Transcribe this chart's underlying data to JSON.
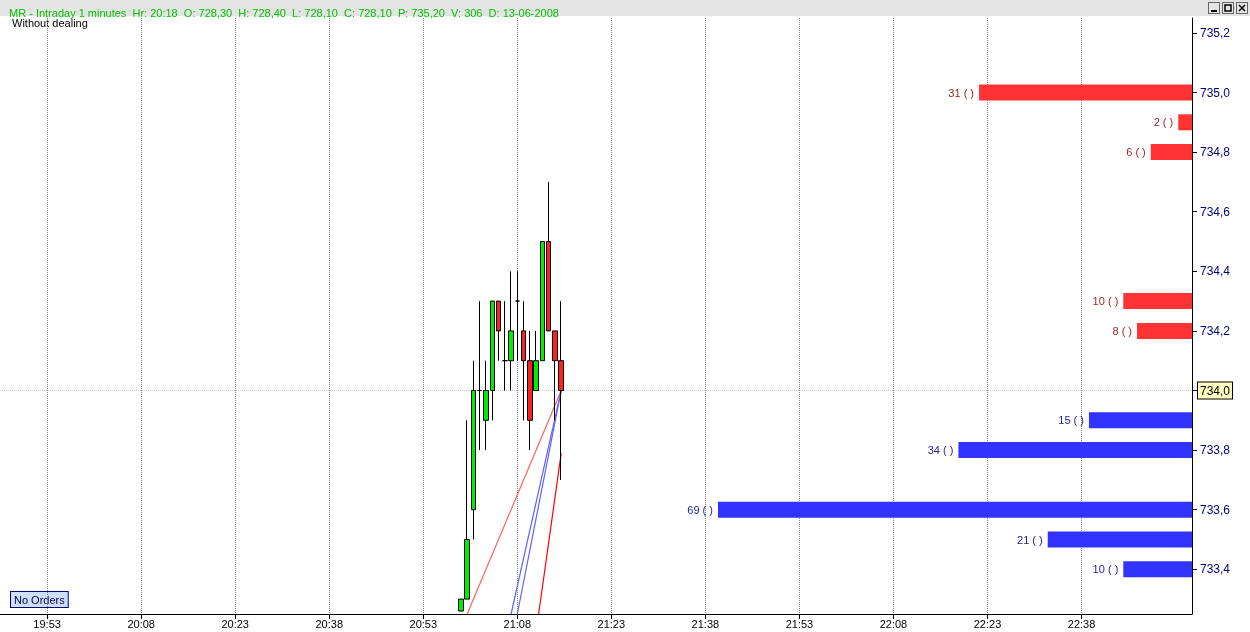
{
  "chart_data": [
    {
      "type": "candlestick",
      "title": "MR - Intraday 1 minutes  Hr: 20:18  O: 728,30  H: 728,40  L: 728,10  C: 728,10  P: 735,20  V: 306  D: 13-06-2008",
      "x": [
        20.9833,
        21.0,
        21.0167,
        21.0333,
        21.05,
        21.0667,
        21.0833,
        21.1,
        21.1167,
        21.1333,
        21.15,
        21.1667,
        21.1833,
        21.2,
        21.2167,
        21.2333,
        21.25
      ],
      "ohlc": [
        [
          733.26,
          733.3,
          733.26,
          733.3
        ],
        [
          733.3,
          733.9,
          733.3,
          733.5
        ],
        [
          733.6,
          734.1,
          733.5,
          734.0
        ],
        [
          734.0,
          734.3,
          733.8,
          734.0
        ],
        [
          733.9,
          734.1,
          733.8,
          734.0
        ],
        [
          734.0,
          734.3,
          733.9,
          734.3
        ],
        [
          734.3,
          734.3,
          734.1,
          734.2
        ],
        [
          734.1,
          734.3,
          734.0,
          734.1
        ],
        [
          734.1,
          734.4,
          734.0,
          734.2
        ],
        [
          734.3,
          734.4,
          734.1,
          734.3
        ],
        [
          734.2,
          734.3,
          733.9,
          734.1
        ],
        [
          734.1,
          734.2,
          733.8,
          733.9
        ],
        [
          734.0,
          734.2,
          734.0,
          734.1
        ],
        [
          734.1,
          734.5,
          734.1,
          734.5
        ],
        [
          734.5,
          734.7,
          734.2,
          734.2
        ],
        [
          734.2,
          734.2,
          733.9,
          734.1
        ],
        [
          734.1,
          734.3,
          733.7,
          734.0
        ]
      ],
      "series": [
        {
          "type": "line",
          "color": "#ff6060",
          "x": [
            21.0,
            21.25
          ],
          "values": [
            733.25,
            734.0
          ]
        },
        {
          "type": "line",
          "color": "#6060ff",
          "x": [
            21.1167,
            21.25
          ],
          "values": [
            733.25,
            734.0
          ]
        },
        {
          "type": "line",
          "color": "#6060ff",
          "x": [
            21.1333,
            21.25
          ],
          "values": [
            733.25,
            734.0
          ]
        },
        {
          "type": "line",
          "color": "#ff0000",
          "x": [
            21.19,
            21.25
          ],
          "values": [
            733.25,
            733.79
          ]
        }
      ],
      "xlim": [
        19.758,
        22.927
      ],
      "xticks": [
        {
          "value": 19.8833,
          "label": "19:53"
        },
        {
          "value": 20.1333,
          "label": "20:08"
        },
        {
          "value": 20.3833,
          "label": "20:23"
        },
        {
          "value": 20.6333,
          "label": "20:38"
        },
        {
          "value": 20.8833,
          "label": "20:53"
        },
        {
          "value": 21.1333,
          "label": "21:08"
        },
        {
          "value": 21.3833,
          "label": "21:23"
        },
        {
          "value": 21.6333,
          "label": "21:38"
        },
        {
          "value": 21.8833,
          "label": "21:53"
        },
        {
          "value": 22.1333,
          "label": "22:08"
        },
        {
          "value": 22.3833,
          "label": "22:23"
        },
        {
          "value": 22.6333,
          "label": "22:38"
        }
      ],
      "ylim": [
        733.25,
        735.25
      ],
      "tick_labels": "x",
      "yticks": [
        733.4,
        733.6,
        733.8,
        734.0,
        734.2,
        734.4,
        734.6,
        734.8,
        735.0,
        735.2
      ],
      "grid": "x",
      "annotations": [
        "Without dealing",
        "No Orders"
      ],
      "ref_lines": [
        {
          "axis": "y",
          "value": 734.0,
          "label": "734,0"
        }
      ]
    },
    {
      "type": "bar",
      "orientation": "horizontal",
      "categories": [
        "735,2",
        null,
        "735,0",
        null,
        "734,8",
        null,
        "734,6",
        null,
        "734,4",
        null,
        "734,2",
        null,
        null,
        null,
        "733,8",
        null,
        "733,6",
        null,
        "733,4",
        null
      ],
      "values": [
        null,
        null,
        31,
        2,
        6,
        null,
        null,
        null,
        null,
        10,
        8,
        null,
        null,
        15,
        34,
        null,
        69,
        21,
        10,
        null
      ],
      "colors": [
        null,
        null,
        "#ff3333",
        "#ff3333",
        "#ff3333",
        null,
        null,
        null,
        null,
        "#ff3333",
        "#ff3333",
        null,
        null,
        "#3333ff",
        "#3333ff",
        null,
        "#3333ff",
        "#3333ff",
        "#3333ff",
        null
      ],
      "value_labels": [
        null,
        null,
        "31 ( )",
        "2 ( )",
        "6 ( )",
        null,
        null,
        null,
        null,
        "10 ( )",
        "8 ( )",
        null,
        null,
        "15 ( )",
        "34 ( )",
        null,
        "69 ( )",
        "21 ( )",
        "10 ( )",
        null
      ]
    }
  ]
}
